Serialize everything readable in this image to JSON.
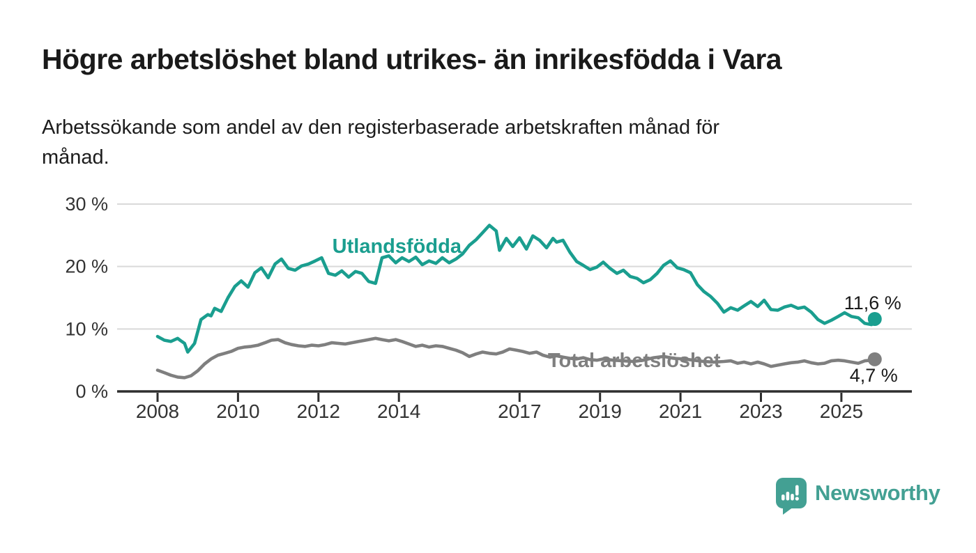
{
  "header": {
    "title": "Högre arbetslöshet bland utrikes- än inrikesfödda i Vara",
    "subtitle": "Arbetssökande som andel av den registerbaserade arbetskraften månad för\nmånad."
  },
  "colors": {
    "accent_teal": "#1a9e8f",
    "series_gray": "#7f7f7f",
    "brand_teal": "#43a093",
    "text_dark": "#1a1a1a",
    "axis_text": "#333333",
    "gridline": "#d9d9d9",
    "axis_line": "#2e2e2e",
    "background": "#ffffff"
  },
  "chart_data": {
    "type": "line",
    "title": "Högre arbetslöshet bland utrikes- än inrikesfödda i Vara",
    "subtitle": "Arbetssökande som andel av den registerbaserade arbetskraften månad för månad.",
    "xlabel": "",
    "ylabel": "",
    "unit": "%",
    "grid": "horizontal",
    "legend_position": "inline-labels",
    "ylim": [
      0,
      30
    ],
    "xlim": [
      2007.0,
      2026.75
    ],
    "y_ticks": [
      {
        "value": 0,
        "label": "0 %"
      },
      {
        "value": 10,
        "label": "10 %"
      },
      {
        "value": 20,
        "label": "20 %"
      },
      {
        "value": 30,
        "label": "30 %"
      }
    ],
    "x_ticks": [
      {
        "value": 2008,
        "label": "2008"
      },
      {
        "value": 2010,
        "label": "2010"
      },
      {
        "value": 2012,
        "label": "2012"
      },
      {
        "value": 2014,
        "label": "2014"
      },
      {
        "value": 2017,
        "label": "2017"
      },
      {
        "value": 2019,
        "label": "2019"
      },
      {
        "value": 2021,
        "label": "2021"
      },
      {
        "value": 2023,
        "label": "2023"
      },
      {
        "value": 2025,
        "label": "2025"
      }
    ],
    "series": [
      {
        "name": "Utlandsfödda",
        "color": "#1a9e8f",
        "end_label": "11,6 %",
        "end_value": 11.6,
        "label_anchor": {
          "x": 2013.95,
          "y": 23.3
        },
        "points": [
          [
            2008.0,
            8.8
          ],
          [
            2008.17,
            8.2
          ],
          [
            2008.33,
            8.0
          ],
          [
            2008.5,
            8.5
          ],
          [
            2008.58,
            8.1
          ],
          [
            2008.67,
            7.7
          ],
          [
            2008.75,
            6.3
          ],
          [
            2008.92,
            7.7
          ],
          [
            2009.08,
            11.5
          ],
          [
            2009.25,
            12.3
          ],
          [
            2009.33,
            12.1
          ],
          [
            2009.42,
            13.3
          ],
          [
            2009.58,
            12.8
          ],
          [
            2009.75,
            15.0
          ],
          [
            2009.92,
            16.8
          ],
          [
            2010.08,
            17.7
          ],
          [
            2010.25,
            16.7
          ],
          [
            2010.42,
            19.0
          ],
          [
            2010.58,
            19.8
          ],
          [
            2010.75,
            18.2
          ],
          [
            2010.92,
            20.4
          ],
          [
            2011.08,
            21.2
          ],
          [
            2011.25,
            19.7
          ],
          [
            2011.42,
            19.4
          ],
          [
            2011.58,
            20.1
          ],
          [
            2011.75,
            20.4
          ],
          [
            2011.92,
            20.9
          ],
          [
            2012.08,
            21.4
          ],
          [
            2012.25,
            18.9
          ],
          [
            2012.42,
            18.6
          ],
          [
            2012.58,
            19.3
          ],
          [
            2012.75,
            18.3
          ],
          [
            2012.92,
            19.2
          ],
          [
            2013.08,
            18.9
          ],
          [
            2013.25,
            17.6
          ],
          [
            2013.42,
            17.3
          ],
          [
            2013.58,
            21.4
          ],
          [
            2013.75,
            21.7
          ],
          [
            2013.92,
            20.6
          ],
          [
            2014.08,
            21.4
          ],
          [
            2014.25,
            20.8
          ],
          [
            2014.42,
            21.5
          ],
          [
            2014.58,
            20.3
          ],
          [
            2014.75,
            20.9
          ],
          [
            2014.92,
            20.5
          ],
          [
            2015.08,
            21.4
          ],
          [
            2015.25,
            20.6
          ],
          [
            2015.42,
            21.2
          ],
          [
            2015.58,
            22.0
          ],
          [
            2015.75,
            23.4
          ],
          [
            2015.92,
            24.3
          ],
          [
            2016.08,
            25.4
          ],
          [
            2016.25,
            26.6
          ],
          [
            2016.42,
            25.7
          ],
          [
            2016.5,
            22.6
          ],
          [
            2016.67,
            24.5
          ],
          [
            2016.83,
            23.2
          ],
          [
            2017.0,
            24.6
          ],
          [
            2017.17,
            22.8
          ],
          [
            2017.33,
            24.9
          ],
          [
            2017.5,
            24.2
          ],
          [
            2017.67,
            23.0
          ],
          [
            2017.83,
            24.5
          ],
          [
            2017.92,
            23.9
          ],
          [
            2018.08,
            24.2
          ],
          [
            2018.25,
            22.3
          ],
          [
            2018.42,
            20.8
          ],
          [
            2018.58,
            20.2
          ],
          [
            2018.75,
            19.5
          ],
          [
            2018.92,
            19.9
          ],
          [
            2019.08,
            20.7
          ],
          [
            2019.25,
            19.7
          ],
          [
            2019.42,
            18.9
          ],
          [
            2019.58,
            19.4
          ],
          [
            2019.75,
            18.4
          ],
          [
            2019.92,
            18.1
          ],
          [
            2020.08,
            17.4
          ],
          [
            2020.25,
            17.9
          ],
          [
            2020.42,
            18.9
          ],
          [
            2020.58,
            20.2
          ],
          [
            2020.75,
            20.9
          ],
          [
            2020.92,
            19.8
          ],
          [
            2021.08,
            19.5
          ],
          [
            2021.25,
            19.0
          ],
          [
            2021.42,
            17.1
          ],
          [
            2021.58,
            16.0
          ],
          [
            2021.75,
            15.2
          ],
          [
            2021.92,
            14.1
          ],
          [
            2022.08,
            12.7
          ],
          [
            2022.25,
            13.4
          ],
          [
            2022.42,
            13.0
          ],
          [
            2022.58,
            13.7
          ],
          [
            2022.75,
            14.4
          ],
          [
            2022.92,
            13.6
          ],
          [
            2023.08,
            14.6
          ],
          [
            2023.25,
            13.1
          ],
          [
            2023.42,
            13.0
          ],
          [
            2023.58,
            13.5
          ],
          [
            2023.75,
            13.8
          ],
          [
            2023.92,
            13.3
          ],
          [
            2024.08,
            13.5
          ],
          [
            2024.25,
            12.7
          ],
          [
            2024.42,
            11.5
          ],
          [
            2024.58,
            10.9
          ],
          [
            2024.75,
            11.4
          ],
          [
            2024.92,
            12.0
          ],
          [
            2025.08,
            12.6
          ],
          [
            2025.25,
            12.0
          ],
          [
            2025.42,
            11.8
          ],
          [
            2025.58,
            10.9
          ],
          [
            2025.75,
            10.7
          ],
          [
            2025.83,
            11.6
          ]
        ]
      },
      {
        "name": "Total arbetslöshet",
        "color": "#7f7f7f",
        "end_label": "4,7 %",
        "end_value": 4.7,
        "label_anchor": {
          "x": 2019.85,
          "y": 5.0
        },
        "points": [
          [
            2008.0,
            3.4
          ],
          [
            2008.17,
            3.0
          ],
          [
            2008.33,
            2.6
          ],
          [
            2008.5,
            2.3
          ],
          [
            2008.67,
            2.2
          ],
          [
            2008.83,
            2.5
          ],
          [
            2009.0,
            3.3
          ],
          [
            2009.17,
            4.4
          ],
          [
            2009.33,
            5.2
          ],
          [
            2009.5,
            5.8
          ],
          [
            2009.67,
            6.1
          ],
          [
            2009.83,
            6.4
          ],
          [
            2010.0,
            6.9
          ],
          [
            2010.17,
            7.1
          ],
          [
            2010.33,
            7.2
          ],
          [
            2010.5,
            7.4
          ],
          [
            2010.67,
            7.8
          ],
          [
            2010.83,
            8.2
          ],
          [
            2011.0,
            8.3
          ],
          [
            2011.17,
            7.8
          ],
          [
            2011.33,
            7.5
          ],
          [
            2011.5,
            7.3
          ],
          [
            2011.67,
            7.2
          ],
          [
            2011.83,
            7.4
          ],
          [
            2012.0,
            7.3
          ],
          [
            2012.17,
            7.5
          ],
          [
            2012.33,
            7.8
          ],
          [
            2012.5,
            7.7
          ],
          [
            2012.67,
            7.6
          ],
          [
            2012.83,
            7.8
          ],
          [
            2013.0,
            8.0
          ],
          [
            2013.17,
            8.2
          ],
          [
            2013.42,
            8.5
          ],
          [
            2013.58,
            8.3
          ],
          [
            2013.75,
            8.1
          ],
          [
            2013.92,
            8.3
          ],
          [
            2014.08,
            8.0
          ],
          [
            2014.25,
            7.6
          ],
          [
            2014.42,
            7.2
          ],
          [
            2014.58,
            7.4
          ],
          [
            2014.75,
            7.1
          ],
          [
            2014.92,
            7.3
          ],
          [
            2015.08,
            7.2
          ],
          [
            2015.25,
            6.9
          ],
          [
            2015.42,
            6.6
          ],
          [
            2015.58,
            6.2
          ],
          [
            2015.75,
            5.6
          ],
          [
            2015.92,
            6.0
          ],
          [
            2016.08,
            6.3
          ],
          [
            2016.25,
            6.1
          ],
          [
            2016.42,
            6.0
          ],
          [
            2016.58,
            6.3
          ],
          [
            2016.75,
            6.8
          ],
          [
            2016.92,
            6.6
          ],
          [
            2017.08,
            6.4
          ],
          [
            2017.25,
            6.1
          ],
          [
            2017.42,
            6.3
          ],
          [
            2017.58,
            5.8
          ],
          [
            2017.75,
            5.5
          ],
          [
            2017.92,
            5.7
          ],
          [
            2018.08,
            5.5
          ],
          [
            2018.25,
            5.3
          ],
          [
            2018.42,
            5.2
          ],
          [
            2018.58,
            5.4
          ],
          [
            2018.75,
            5.1
          ],
          [
            2018.92,
            5.0
          ],
          [
            2019.08,
            5.2
          ],
          [
            2019.33,
            5.0
          ],
          [
            2019.58,
            4.9
          ],
          [
            2019.83,
            4.8
          ],
          [
            2020.08,
            5.0
          ],
          [
            2020.33,
            5.4
          ],
          [
            2020.58,
            5.6
          ],
          [
            2020.83,
            5.3
          ],
          [
            2021.08,
            5.2
          ],
          [
            2021.33,
            5.0
          ],
          [
            2021.58,
            4.8
          ],
          [
            2021.83,
            4.7
          ],
          [
            2022.08,
            4.8
          ],
          [
            2022.25,
            4.9
          ],
          [
            2022.42,
            4.5
          ],
          [
            2022.58,
            4.7
          ],
          [
            2022.75,
            4.4
          ],
          [
            2022.92,
            4.7
          ],
          [
            2023.08,
            4.4
          ],
          [
            2023.25,
            4.0
          ],
          [
            2023.42,
            4.2
          ],
          [
            2023.58,
            4.4
          ],
          [
            2023.75,
            4.6
          ],
          [
            2023.92,
            4.7
          ],
          [
            2024.08,
            4.9
          ],
          [
            2024.25,
            4.6
          ],
          [
            2024.42,
            4.4
          ],
          [
            2024.58,
            4.5
          ],
          [
            2024.75,
            4.9
          ],
          [
            2024.92,
            5.0
          ],
          [
            2025.08,
            4.9
          ],
          [
            2025.25,
            4.7
          ],
          [
            2025.42,
            4.5
          ],
          [
            2025.58,
            4.9
          ],
          [
            2025.75,
            5.0
          ],
          [
            2025.83,
            4.7
          ]
        ]
      }
    ]
  },
  "footer": {
    "brand": "Newsworthy"
  }
}
